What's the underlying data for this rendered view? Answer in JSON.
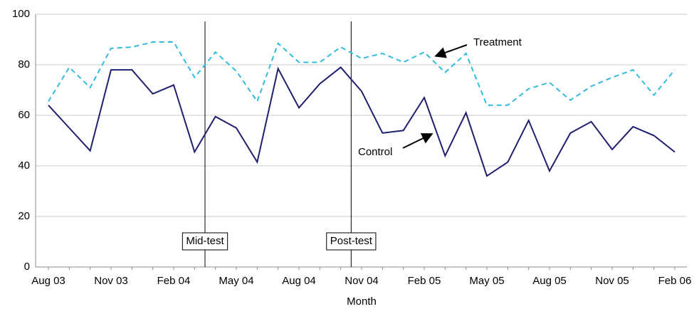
{
  "chart_data": {
    "type": "line",
    "x_label": "Month",
    "categories": [
      "Aug 03",
      null,
      null,
      "Nov 03",
      null,
      null,
      "Feb 04",
      null,
      null,
      "May 04",
      null,
      null,
      "Aug 04",
      null,
      null,
      "Nov 04",
      null,
      null,
      "Feb 05",
      null,
      null,
      "May 05",
      null,
      null,
      "Aug 05",
      null,
      null,
      "Nov 05",
      null,
      null,
      "Feb 06"
    ],
    "series": [
      {
        "name": "Treatment",
        "color": "#33bbdd",
        "dashed": true,
        "values": [
          65.5,
          79,
          71,
          86.5,
          87,
          89,
          89,
          75,
          85,
          77.5,
          65.5,
          88.5,
          81,
          81,
          87,
          82.5,
          84.5,
          81,
          85,
          77,
          84.5,
          64,
          64,
          70.5,
          73,
          66,
          71.5,
          75,
          78,
          68,
          78
        ]
      },
      {
        "name": "Control",
        "color": "#1f1f6e",
        "dashed": false,
        "values": [
          64,
          55,
          46,
          78,
          78,
          68.5,
          72,
          45.5,
          59.5,
          55,
          41.5,
          78.5,
          63,
          72.5,
          79,
          69.5,
          53,
          54,
          67,
          44,
          61,
          36,
          41.5,
          58,
          38,
          53,
          57.5,
          46.5,
          55.5,
          52,
          45.5
        ]
      }
    ],
    "reference_lines": [
      {
        "label": "Mid-test",
        "x": 7.5
      },
      {
        "label": "Post-test",
        "x": 14.5
      }
    ],
    "ylim": [
      0,
      100
    ],
    "yticks": [
      0,
      20,
      40,
      60,
      80,
      100
    ],
    "grid": true
  }
}
